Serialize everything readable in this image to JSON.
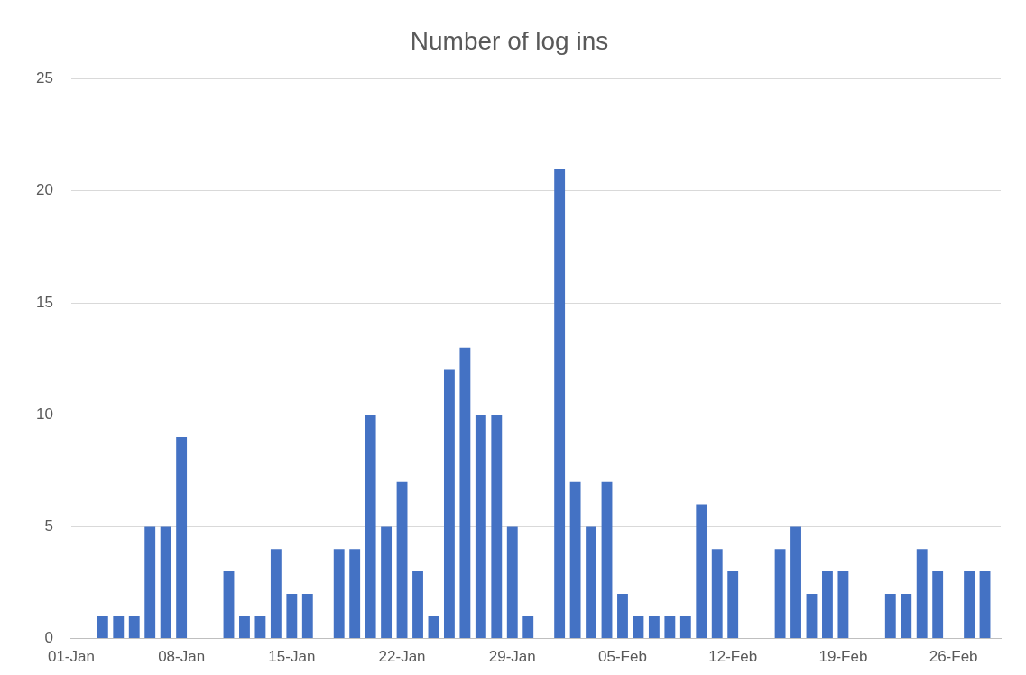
{
  "chart_data": {
    "type": "bar",
    "title": "Number of log ins",
    "x": [
      "--01-03",
      "--01-04",
      "--01-05",
      "--01-06",
      "--01-07",
      "--01-08",
      "--01-11",
      "--01-12",
      "--01-13",
      "--01-14",
      "--01-15",
      "--01-16",
      "--01-18",
      "--01-19",
      "--01-20",
      "--01-21",
      "--01-22",
      "--01-23",
      "--01-24",
      "--01-25",
      "--01-26",
      "--01-27",
      "--01-28",
      "--01-29",
      "--01-30",
      "--02-01",
      "--02-02",
      "--02-03",
      "--02-04",
      "--02-05",
      "--02-06",
      "--02-07",
      "--02-08",
      "--02-09",
      "--02-10",
      "--02-11",
      "--02-12",
      "--02-15",
      "--02-16",
      "--02-17",
      "--02-18",
      "--02-19",
      "--02-22",
      "--02-23",
      "--02-24",
      "--02-25",
      "--02-27",
      "--02-28"
    ],
    "values": [
      1,
      1,
      1,
      5,
      5,
      9,
      3,
      1,
      1,
      4,
      2,
      2,
      4,
      4,
      10,
      5,
      7,
      3,
      1,
      12,
      13,
      10,
      10,
      5,
      1,
      21,
      7,
      5,
      7,
      2,
      1,
      1,
      1,
      1,
      6,
      4,
      3,
      4,
      5,
      2,
      3,
      3,
      2,
      2,
      4,
      3,
      3,
      3
    ],
    "color": "#4472c4",
    "xlim": [
      "--01-01",
      "--03-01"
    ],
    "xticks": [
      {
        "value": "--01-01",
        "label": "01-Jan"
      },
      {
        "value": "--01-08",
        "label": "08-Jan"
      },
      {
        "value": "--01-15",
        "label": "15-Jan"
      },
      {
        "value": "--01-22",
        "label": "22-Jan"
      },
      {
        "value": "--01-29",
        "label": "29-Jan"
      },
      {
        "value": "--02-05",
        "label": "05-Feb"
      },
      {
        "value": "--02-12",
        "label": "12-Feb"
      },
      {
        "value": "--02-19",
        "label": "19-Feb"
      },
      {
        "value": "--02-26",
        "label": "26-Feb"
      }
    ],
    "ylim": [
      0,
      25
    ],
    "yticks": [
      0,
      5,
      10,
      15,
      20,
      25
    ],
    "grid": "y",
    "legend": false
  }
}
